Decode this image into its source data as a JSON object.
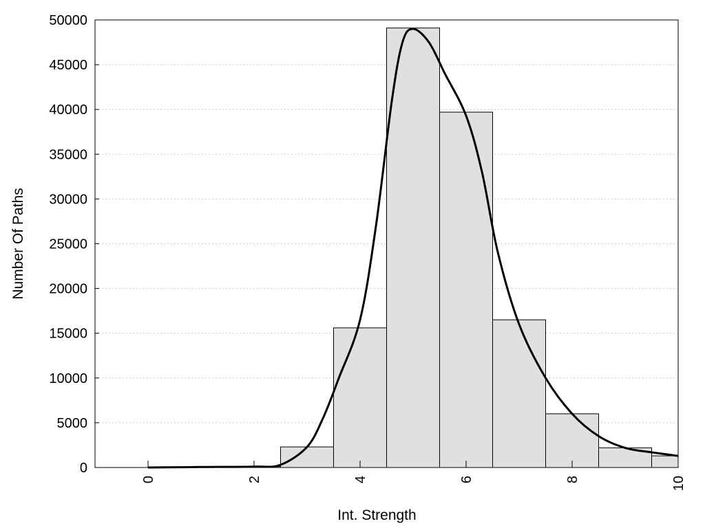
{
  "chart_data": {
    "type": "bar",
    "title": "",
    "xlabel": "Int. Strength",
    "ylabel": "Number Of Paths",
    "xlim": [
      -1,
      10
    ],
    "ylim": [
      0,
      50000
    ],
    "x_ticks": [
      0,
      2,
      4,
      6,
      8,
      10
    ],
    "y_ticks": [
      0,
      5000,
      10000,
      15000,
      20000,
      25000,
      30000,
      35000,
      40000,
      45000,
      50000
    ],
    "grid": "horizontal dotted",
    "legend": "none",
    "bar_color": "#e0e0e0",
    "bar_stroke": "#000000",
    "curve_color": "#000000",
    "bars": [
      {
        "x": 0,
        "value": 0
      },
      {
        "x": 1,
        "value": 50
      },
      {
        "x": 2,
        "value": 100
      },
      {
        "x": 3,
        "value": 2300
      },
      {
        "x": 4,
        "value": 15600
      },
      {
        "x": 5,
        "value": 49100
      },
      {
        "x": 6,
        "value": 39700
      },
      {
        "x": 7,
        "value": 16500
      },
      {
        "x": 8,
        "value": 6000
      },
      {
        "x": 9,
        "value": 2200
      },
      {
        "x": 10,
        "value": 1300
      }
    ],
    "curve": [
      {
        "x": 0,
        "y": 0
      },
      {
        "x": 1,
        "y": 50
      },
      {
        "x": 2,
        "y": 100
      },
      {
        "x": 2.5,
        "y": 300
      },
      {
        "x": 3,
        "y": 2300
      },
      {
        "x": 3.3,
        "y": 5500
      },
      {
        "x": 3.6,
        "y": 10000
      },
      {
        "x": 4,
        "y": 16500
      },
      {
        "x": 4.3,
        "y": 27000
      },
      {
        "x": 4.6,
        "y": 41000
      },
      {
        "x": 4.8,
        "y": 47500
      },
      {
        "x": 5,
        "y": 49000
      },
      {
        "x": 5.3,
        "y": 47500
      },
      {
        "x": 5.6,
        "y": 44000
      },
      {
        "x": 6,
        "y": 39300
      },
      {
        "x": 6.3,
        "y": 33000
      },
      {
        "x": 6.6,
        "y": 24000
      },
      {
        "x": 7,
        "y": 16000
      },
      {
        "x": 7.5,
        "y": 10000
      },
      {
        "x": 8,
        "y": 6000
      },
      {
        "x": 8.5,
        "y": 3500
      },
      {
        "x": 9,
        "y": 2200
      },
      {
        "x": 9.5,
        "y": 1700
      },
      {
        "x": 10,
        "y": 1300
      }
    ]
  }
}
